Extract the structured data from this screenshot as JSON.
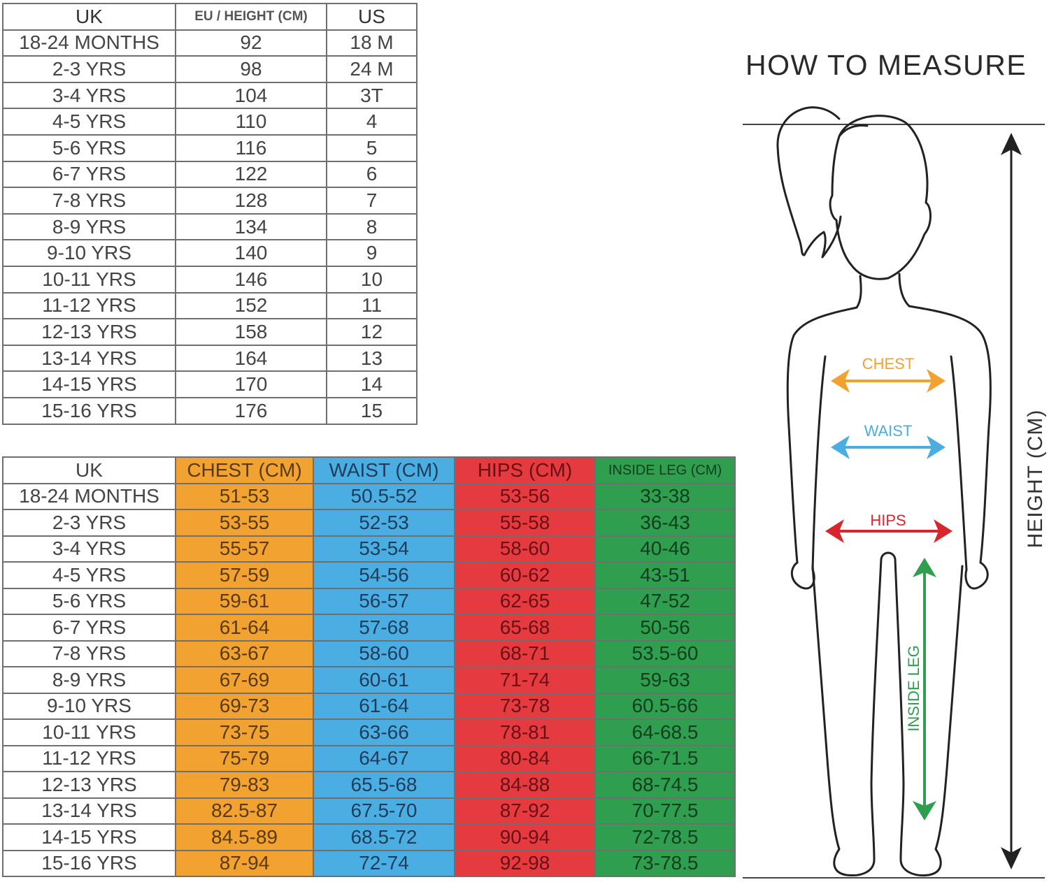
{
  "size_table": {
    "headers": [
      "UK",
      "EU / HEIGHT (CM)",
      "US"
    ],
    "rows": [
      [
        "18-24 MONTHS",
        "92",
        "18 M"
      ],
      [
        "2-3 YRS",
        "98",
        "24 M"
      ],
      [
        "3-4 YRS",
        "104",
        "3T"
      ],
      [
        "4-5 YRS",
        "110",
        "4"
      ],
      [
        "5-6 YRS",
        "116",
        "5"
      ],
      [
        "6-7 YRS",
        "122",
        "6"
      ],
      [
        "7-8 YRS",
        "128",
        "7"
      ],
      [
        "8-9 YRS",
        "134",
        "8"
      ],
      [
        "9-10 YRS",
        "140",
        "9"
      ],
      [
        "10-11 YRS",
        "146",
        "10"
      ],
      [
        "11-12 YRS",
        "152",
        "11"
      ],
      [
        "12-13 YRS",
        "158",
        "12"
      ],
      [
        "13-14 YRS",
        "164",
        "13"
      ],
      [
        "14-15 YRS",
        "170",
        "14"
      ],
      [
        "15-16 YRS",
        "176",
        "15"
      ]
    ]
  },
  "measure_table": {
    "headers": [
      "UK",
      "CHEST (CM)",
      "WAIST (CM)",
      "HIPS (CM)",
      "INSIDE LEG (CM)"
    ],
    "rows": [
      [
        "18-24 MONTHS",
        "51-53",
        "50.5-52",
        "53-56",
        "33-38"
      ],
      [
        "2-3 YRS",
        "53-55",
        "52-53",
        "55-58",
        "36-43"
      ],
      [
        "3-4 YRS",
        "55-57",
        "53-54",
        "58-60",
        "40-46"
      ],
      [
        "4-5 YRS",
        "57-59",
        "54-56",
        "60-62",
        "43-51"
      ],
      [
        "5-6 YRS",
        "59-61",
        "56-57",
        "62-65",
        "47-52"
      ],
      [
        "6-7 YRS",
        "61-64",
        "57-68",
        "65-68",
        "50-56"
      ],
      [
        "7-8 YRS",
        "63-67",
        "58-60",
        "68-71",
        "53.5-60"
      ],
      [
        "8-9 YRS",
        "67-69",
        "60-61",
        "71-74",
        "59-63"
      ],
      [
        "9-10 YRS",
        "69-73",
        "61-64",
        "73-78",
        "60.5-66"
      ],
      [
        "10-11 YRS",
        "73-75",
        "63-66",
        "78-81",
        "64-68.5"
      ],
      [
        "11-12 YRS",
        "75-79",
        "64-67",
        "80-84",
        "66-71.5"
      ],
      [
        "12-13 YRS",
        "79-83",
        "65.5-68",
        "84-88",
        "68-74.5"
      ],
      [
        "13-14 YRS",
        "82.5-87",
        "67.5-70",
        "87-92",
        "70-77.5"
      ],
      [
        "14-15 YRS",
        "84.5-89",
        "68.5-72",
        "90-94",
        "72-78.5"
      ],
      [
        "15-16 YRS",
        "87-94",
        "72-74",
        "92-98",
        "73-78.5"
      ]
    ]
  },
  "diagram": {
    "title": "HOW TO MEASURE",
    "labels": {
      "chest": "CHEST",
      "waist": "WAIST",
      "hips": "HIPS",
      "inside_leg": "INSIDE LEG",
      "height": "HEIGHT (CM)"
    },
    "colors": {
      "chest": "#f2a230",
      "waist": "#4aaee3",
      "hips": "#d7262c",
      "inside_leg": "#2f9e4e",
      "outline": "#222222"
    }
  }
}
